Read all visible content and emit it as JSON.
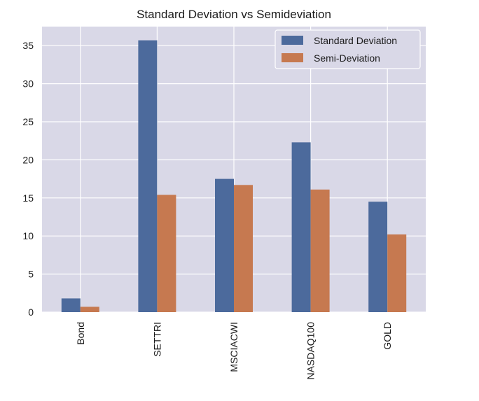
{
  "chart_data": {
    "type": "bar",
    "title": "Standard Deviation vs Semideviation",
    "xlabel": "",
    "ylabel": "",
    "categories": [
      "Bond",
      "SETTRI",
      "MSCIACWI",
      "NASDAQ100",
      "GOLD"
    ],
    "series": [
      {
        "name": "Standard Deviation",
        "values": [
          1.8,
          35.7,
          17.5,
          22.3,
          14.5
        ],
        "color": "#4c6a9c"
      },
      {
        "name": "Semi-Deviation",
        "values": [
          0.7,
          15.4,
          16.7,
          16.1,
          10.2
        ],
        "color": "#c67950"
      }
    ],
    "ylim": [
      0,
      37.5
    ],
    "yticks": [
      0,
      5,
      10,
      15,
      20,
      25,
      30,
      35
    ],
    "grid": true,
    "legend_position": "top-right",
    "plot_background": "#d9d8e7"
  }
}
